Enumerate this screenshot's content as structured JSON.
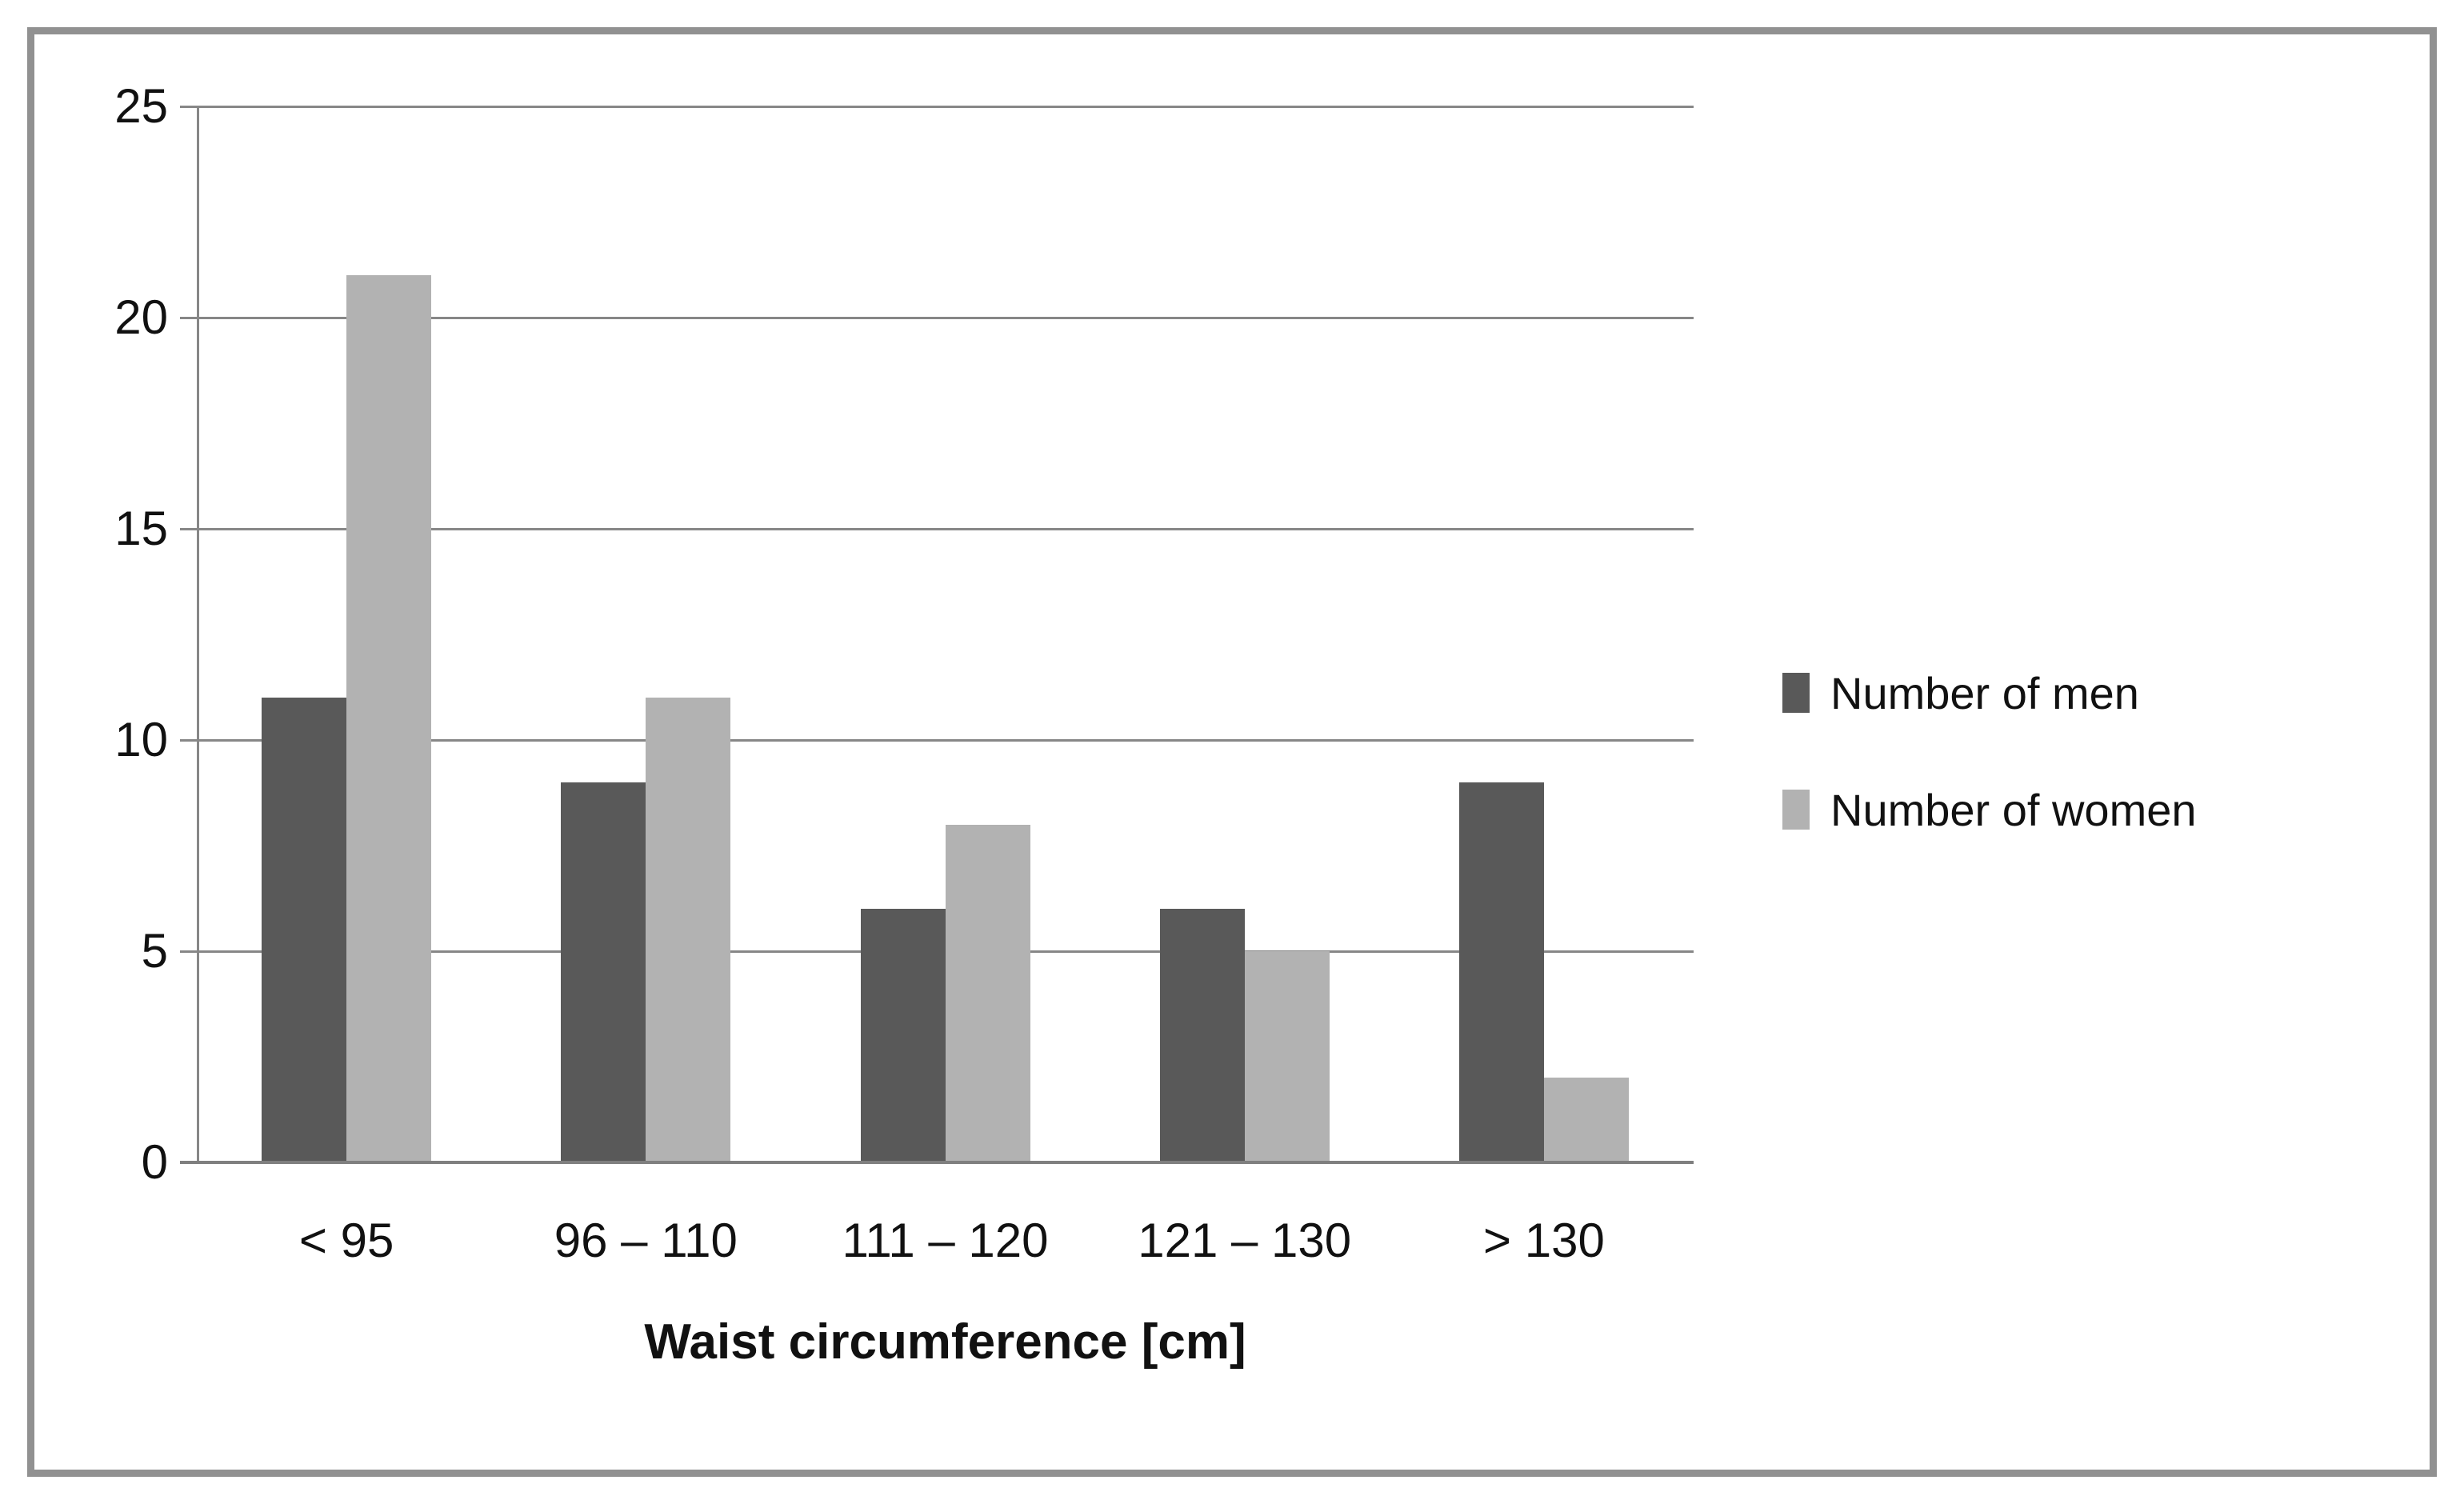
{
  "chart_data": {
    "type": "bar",
    "categories": [
      "< 95",
      "96 – 110",
      "111 – 120",
      "121 – 130",
      "> 130"
    ],
    "series": [
      {
        "name": "Number of men",
        "values": [
          11,
          9,
          6,
          6,
          9
        ],
        "color": "#595959"
      },
      {
        "name": "Number of women",
        "values": [
          21,
          11,
          8,
          5,
          2
        ],
        "color": "#b2b2b2"
      }
    ],
    "xlabel": "Waist circumference [cm]",
    "ylabel": "",
    "ylim": [
      0,
      25
    ],
    "yticks": [
      0,
      5,
      10,
      15,
      20,
      25
    ],
    "grid": true,
    "legend_position": "right"
  },
  "colors": {
    "axis": "#878787",
    "gridline": "#878787",
    "frame": "#919191",
    "background": "#ffffff",
    "text": "#111111"
  }
}
